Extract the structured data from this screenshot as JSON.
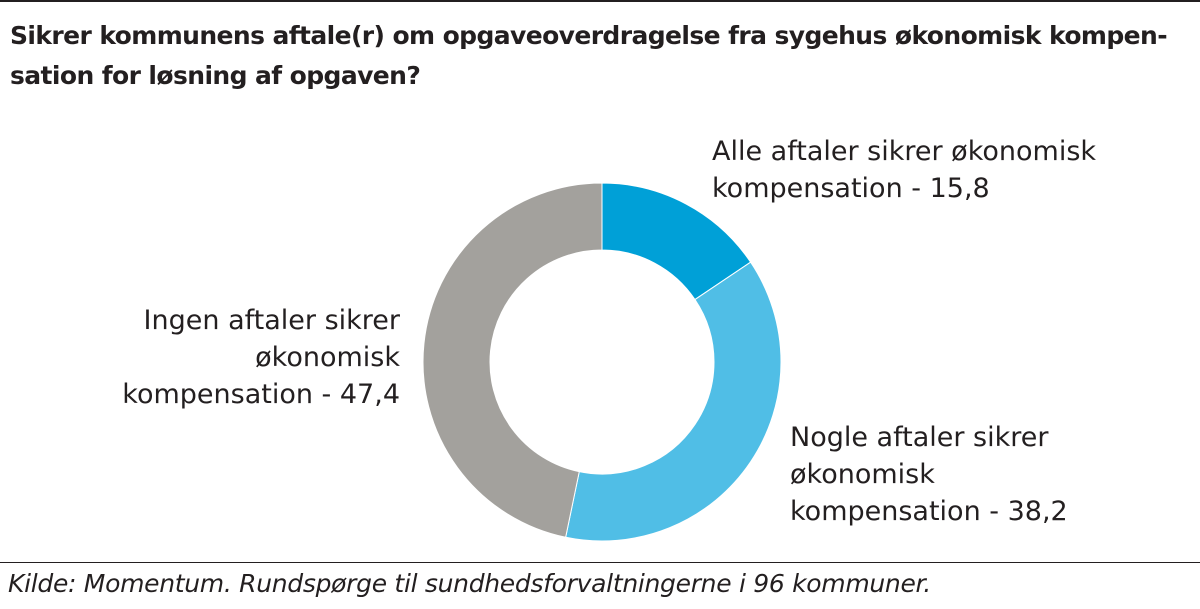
{
  "chart_data": {
    "type": "pie",
    "variant": "donut",
    "title": "Sikrer kommunens aftale(r) om opgaveoverdragelse fra sygehus økonomisk kompensation for løsning af opgaven?",
    "slices": [
      {
        "name": "Alle aftaler sikrer økonomisk kompensation",
        "value": 15.8,
        "color": "#00a0d7",
        "label_lines": [
          "Alle aftaler sikrer økonomisk",
          "kompensation - 15,8"
        ]
      },
      {
        "name": "Nogle aftaler sikrer økonomisk kompensation",
        "value": 38.2,
        "color": "#50bee6",
        "label_lines": [
          "Nogle aftaler sikrer",
          "økonomisk",
          "kompensation - 38,2"
        ]
      },
      {
        "name": "Ingen aftaler sikrer økonomisk kompensation",
        "value": 47.4,
        "color": "#a3a19d",
        "label_lines": [
          "Ingen aftaler sikrer",
          "økonomisk",
          "kompensation - 47,4"
        ]
      }
    ],
    "legend": "none",
    "grid": false
  },
  "title_lines": [
    "Sikrer kommunens aftale(r) om opgaveoverdragelse fra sygehus økonomisk kompen-",
    "sation for løsning af opgaven?"
  ],
  "source": "Kilde: Momentum. Rundspørge til sundhedsforvaltningerne i 96 kommuner."
}
